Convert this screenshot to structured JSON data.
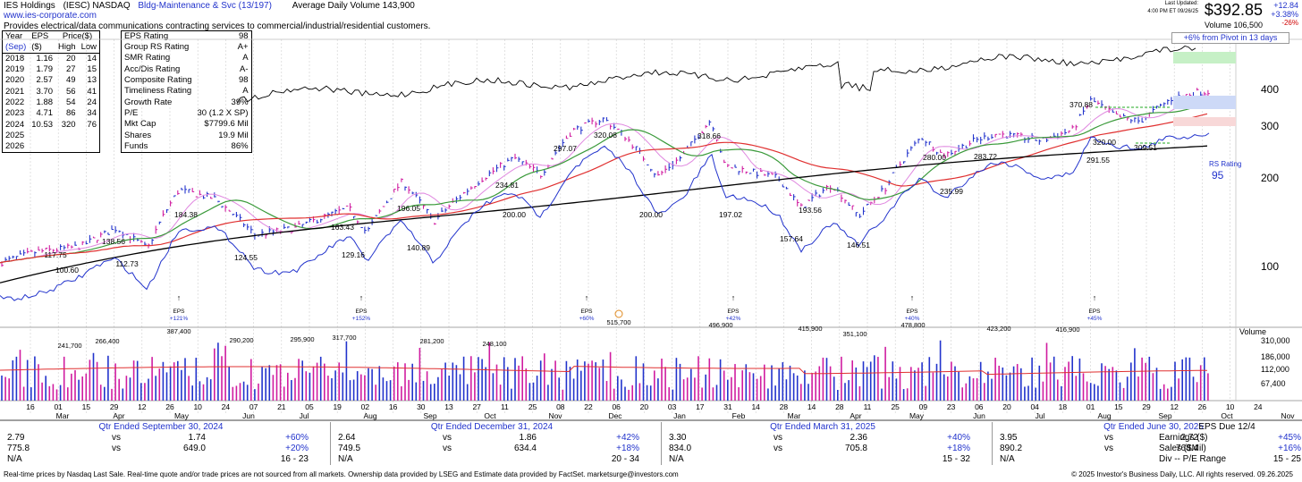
{
  "header": {
    "company": "IES Holdings",
    "ticker_exchange": "(IESC) NASDAQ",
    "industry": "Bldg-Maintenance & Svc (13/197)",
    "avg_volume": "Average Daily Volume 143,900",
    "website": "www.ies-corporate.com",
    "description": "Provides electrical/data communications contracting services to commercial/industrial/residential customers."
  },
  "price_box": {
    "last_updated_label": "Last Updated:",
    "last_updated": "4:00 PM ET 09/26/25",
    "price": "$392.85",
    "change": "+12.84",
    "change_pct": "+3.38%",
    "other_pct": "-26%",
    "volume": "Volume 106,500",
    "pivot_note": "+6% from Pivot in 13 days"
  },
  "eps_table": {
    "headers": [
      "Year",
      "EPS",
      "Price($)",
      ""
    ],
    "subheaders": [
      "(Sep)",
      "($)",
      "High",
      "Low"
    ],
    "rows": [
      [
        "2018",
        "1.16",
        "20",
        "14"
      ],
      [
        "2019",
        "1.79",
        "27",
        "15"
      ],
      [
        "2020",
        "2.57",
        "49",
        "13"
      ],
      [
        "2021",
        "3.70",
        "56",
        "41"
      ],
      [
        "2022",
        "1.88",
        "54",
        "24"
      ],
      [
        "2023",
        "4.71",
        "86",
        "34"
      ],
      [
        "2024",
        "10.53",
        "320",
        "76"
      ],
      [
        "2025",
        "",
        "",
        ""
      ],
      [
        "2026",
        "",
        "",
        ""
      ]
    ]
  },
  "rating_table": [
    [
      "EPS Rating",
      "98"
    ],
    [
      "Group RS Rating",
      "A+"
    ],
    [
      "SMR Rating",
      "A"
    ],
    [
      "Acc/Dis Rating",
      "A-"
    ],
    [
      "Composite Rating",
      "98"
    ],
    [
      "Timeliness Rating",
      "A"
    ],
    [
      "Growth Rate",
      "39%"
    ],
    [
      "P/E",
      "30 (1.2 X SP)"
    ],
    [
      "Mkt Cap",
      "$7799.6 Mil"
    ],
    [
      "Shares",
      "19.9 Mil"
    ],
    [
      "Funds",
      "86%"
    ]
  ],
  "chart_data": {
    "type": "line",
    "title": "",
    "price_axis": {
      "ticks": [
        "400",
        "300",
        "200",
        "100"
      ],
      "scale": "log"
    },
    "volume_axis": {
      "label": "Volume",
      "ticks": [
        "310,000",
        "186,000",
        "112,000",
        "67,400"
      ]
    },
    "rs_rating_label": "RS Rating",
    "rs_rating": "95",
    "price_annotations": [
      "117.75",
      "100.60",
      "138.56",
      "112.73",
      "184.38",
      "124.55",
      "163.43",
      "129.16",
      "196.05",
      "140.89",
      "234.81",
      "200.00",
      "297.07",
      "320.08",
      "200.00",
      "318.66",
      "197.02",
      "193.56",
      "157.64",
      "146.51",
      "280.00",
      "235.99",
      "283.72",
      "291.55",
      "370.88",
      "320.00",
      "309.51"
    ],
    "volume_annotations": [
      "241,700",
      "266,400",
      "387,400",
      "290,200",
      "295,900",
      "317,700",
      "281,200",
      "248,100",
      "515,700",
      "496,900",
      "415,900",
      "351,100",
      "478,800",
      "423,200",
      "416,900"
    ],
    "eps_markers": [
      {
        "label": "EPS",
        "change": "+121%"
      },
      {
        "label": "EPS",
        "change": "+152%"
      },
      {
        "label": "EPS",
        "change": "+60%"
      },
      {
        "label": "EPS",
        "change": "+42%"
      },
      {
        "label": "EPS",
        "change": "+40%"
      },
      {
        "label": "EPS",
        "change": "+45%"
      }
    ],
    "x_days": [
      "16",
      "01",
      "15",
      "29",
      "12",
      "26",
      "10",
      "24",
      "07",
      "21",
      "05",
      "19",
      "02",
      "16",
      "30",
      "13",
      "27",
      "11",
      "25",
      "08",
      "22",
      "06",
      "20",
      "03",
      "17",
      "31",
      "14",
      "28",
      "14",
      "28",
      "11",
      "25",
      "09",
      "23",
      "06",
      "20",
      "04",
      "18",
      "01",
      "15",
      "29",
      "12",
      "26",
      "10",
      "24"
    ],
    "x_months": [
      "Mar",
      "Apr",
      "May",
      "Jun",
      "Jul",
      "Aug",
      "Sep",
      "Oct",
      "Nov",
      "Dec",
      "Jan",
      "Feb",
      "Mar",
      "Apr",
      "May",
      "Jun",
      "Jul",
      "Aug",
      "Sep",
      "Oct",
      "Nov"
    ],
    "series": [
      {
        "name": "Price",
        "color": "#2233cc"
      },
      {
        "name": "RS Line",
        "color": "#2233cc"
      },
      {
        "color": "#000000"
      },
      {
        "color": "#e03030"
      },
      {
        "color": "#3a9a3a"
      },
      {
        "color": "#e088e0"
      }
    ]
  },
  "quarters": [
    {
      "title": "Qtr Ended September 30, 2024",
      "eps": "2.79",
      "eps_prev": "1.74",
      "eps_chg": "+60%",
      "sales": "775.8",
      "sales_prev": "649.0",
      "sales_chg": "+20%",
      "pe": "N/A",
      "pe_range": "16 - 23"
    },
    {
      "title": "Qtr Ended December 31, 2024",
      "eps": "2.64",
      "eps_prev": "1.86",
      "eps_chg": "+42%",
      "sales": "749.5",
      "sales_prev": "634.4",
      "sales_chg": "+18%",
      "pe": "N/A",
      "pe_range": "20 - 34"
    },
    {
      "title": "Qtr Ended March 31, 2025",
      "eps": "3.30",
      "eps_prev": "2.36",
      "eps_chg": "+40%",
      "sales": "834.0",
      "sales_prev": "705.8",
      "sales_chg": "+18%",
      "pe": "N/A",
      "pe_range": "15 - 32"
    },
    {
      "title": "Qtr Ended June 30, 2025",
      "eps": "3.95",
      "eps_prev": "2.72",
      "eps_chg": "+45%",
      "sales": "890.2",
      "sales_prev": "768.4",
      "sales_chg": "+16%",
      "pe": "N/A",
      "pe_range": "15 - 25"
    }
  ],
  "eps_due": {
    "title": "EPS Due 12/4",
    "rows": [
      "Earnings ($)",
      "Sales ($Mil)",
      "Div -- P/E Range"
    ]
  },
  "vs_label": "vs",
  "footer": {
    "left": "Real-time prices by Nasdaq Last Sale. Real-time quote and/or trade prices are not sourced from all markets. Ownership data provided by LSEG and Estimate data provided by FactSet. marketsurge@investors.com",
    "right": "© 2025 Investor's Business Daily, LLC. All rights reserved.    09.26.2025"
  }
}
